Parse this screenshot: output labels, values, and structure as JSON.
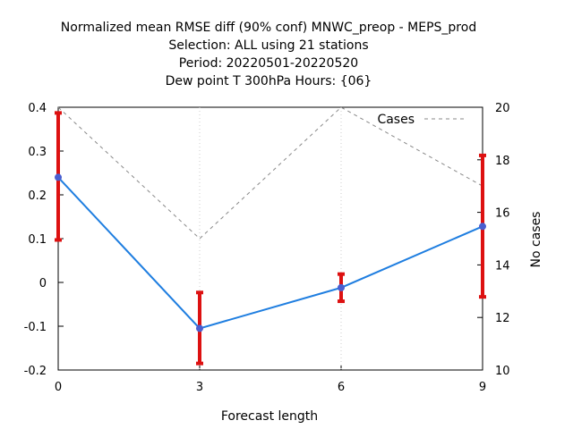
{
  "chart_data": {
    "type": "line",
    "title_lines": [
      "Normalized mean RMSE diff (90% conf) MNWC_preop - MEPS_prod",
      "Selection: ALL using    21 stations",
      "Period: 20220501-20220520",
      "Dew point T 300hPa   Hours: {06}"
    ],
    "xlabel": "Forecast length",
    "ylabel": "",
    "y2label": "No cases",
    "x": [
      0,
      3,
      6,
      9
    ],
    "xlim": [
      0,
      9
    ],
    "ylim": [
      -0.2,
      0.4
    ],
    "y2lim": [
      10,
      20
    ],
    "x_ticks": [
      "0",
      "3",
      "6",
      "9"
    ],
    "y_ticks": [
      "0.4",
      "0.3",
      "0.2",
      "0.1",
      "0",
      "-0.1",
      "-0.2"
    ],
    "y_tick_values": [
      0.4,
      0.3,
      0.2,
      0.1,
      0,
      -0.1,
      -0.2
    ],
    "y2_ticks": [
      "20",
      "18",
      "16",
      "14",
      "12",
      "10"
    ],
    "y2_tick_values": [
      20,
      18,
      16,
      14,
      12,
      10
    ],
    "grid": false,
    "legend_position": "top-right",
    "series": [
      {
        "values": [
          0.24,
          -0.105,
          -0.012,
          0.128
        ],
        "error_low": [
          0.097,
          -0.185,
          -0.043,
          -0.033
        ],
        "error_high": [
          0.387,
          -0.023,
          0.019,
          0.29
        ],
        "color": "#1f7ee0",
        "marker_color": "#4a5fd0",
        "errorbar_color": "#dd1111"
      },
      {
        "name": "Cases",
        "axis": "y2",
        "values": [
          20,
          15,
          20,
          17
        ],
        "color": "#888888",
        "style": "dashed"
      }
    ]
  }
}
